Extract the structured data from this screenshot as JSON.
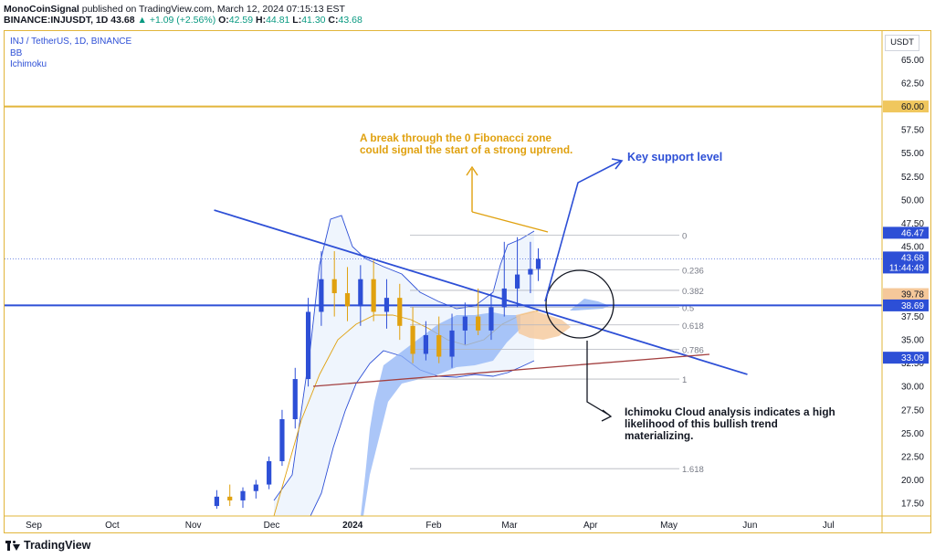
{
  "header": {
    "author": "MonoCoinSignal",
    "published": "published on TradingView.com, March 12, 2024 07:15:13 EST",
    "symbol": "BINANCE:INJUSDT, 1D",
    "last": "43.68",
    "change_arrow": "▲",
    "change": "+1.09 (+2.56%)",
    "o_label": "O:",
    "o": "42.59",
    "h_label": "H:",
    "h": "44.81",
    "l_label": "L:",
    "l": "41.30",
    "c_label": "C:",
    "c": "43.68"
  },
  "legend": {
    "title": "INJ / TetherUS, 1D, BINANCE",
    "indicator1": "BB",
    "indicator2": "Ichimoku"
  },
  "price_axis": {
    "unit": "USDT",
    "ticks": [
      "65.00",
      "62.50",
      "60.00",
      "57.50",
      "55.00",
      "52.50",
      "50.00",
      "47.50",
      "45.00",
      "42.50",
      "40.00",
      "37.50",
      "35.00",
      "32.50",
      "30.00",
      "27.50",
      "25.00",
      "22.50",
      "20.00",
      "17.50"
    ]
  },
  "time_axis": {
    "ticks": [
      "Sep",
      "Oct",
      "Nov",
      "Dec",
      "2024",
      "Feb",
      "Mar",
      "Apr",
      "May",
      "Jun",
      "Jul"
    ]
  },
  "price_labels": {
    "level_60": "60.00",
    "bb_upper": "46.47",
    "last_price": "43.68",
    "countdown": "11:44:49",
    "ichimoku": "39.78",
    "support": "38.69",
    "bb_lower": "33.09"
  },
  "fibonacci": {
    "levels": [
      "0",
      "0.236",
      "0.382",
      "0.5",
      "0.618",
      "0.786",
      "1",
      "1.618"
    ]
  },
  "annotations": {
    "orange_line1": "A break through the 0 Fibonacci zone",
    "orange_line2": "could signal the start of a strong uptrend.",
    "support_label": "Key support level",
    "cloud_line1": "Ichimoku Cloud analysis indicates a high",
    "cloud_line2": "likelihood of this bullish trend",
    "cloud_line3": "materializing."
  },
  "branding": {
    "logo_text": "TradingView"
  },
  "colors": {
    "up": "#089981",
    "orange": "#e0a10f",
    "blue": "#2d4fd6",
    "gold_line": "#e2b53a",
    "cloud_blue": "#8fb3f5",
    "cloud_orange": "#f5c89a"
  },
  "chart_data": {
    "type": "line",
    "title": "",
    "xlabel": "",
    "ylabel": "",
    "x_range": [
      "2023-09-01",
      "2024-07-31"
    ],
    "ylim": [
      16.5,
      67
    ],
    "horizontal_levels": [
      {
        "value": 60.0,
        "style": "gold"
      },
      {
        "value": 38.69,
        "style": "key-support"
      }
    ],
    "fibonacci_levels": [
      {
        "level": "0",
        "price": 46.2
      },
      {
        "level": "0.236",
        "price": 42.5
      },
      {
        "level": "0.382",
        "price": 40.3
      },
      {
        "level": "0.5",
        "price": 38.5
      },
      {
        "level": "0.618",
        "price": 36.6
      },
      {
        "level": "0.786",
        "price": 34.0
      },
      {
        "level": "1",
        "price": 30.8
      },
      {
        "level": "1.618",
        "price": 21.2
      }
    ],
    "trendlines": [
      {
        "name": "",
        "from": [
          "2023-11-09",
          48.9
        ],
        "to": [
          "2024-05-31",
          31.3
        ]
      },
      {
        "name": "",
        "from": [
          "2023-12-14",
          30.6
        ],
        "to": [
          "2024-05-19",
          33.8
        ]
      }
    ],
    "series": [
      {
        "type": "candlestick",
        "x": [
          "2023-11-10",
          "2023-11-15",
          "2023-11-20",
          "2023-11-25",
          "2023-11-30",
          "2023-12-05",
          "2023-12-10",
          "2023-12-15",
          "2023-12-20",
          "2023-12-25",
          "2023-12-30",
          "2024-01-04",
          "2024-01-09",
          "2024-01-14",
          "2024-01-19",
          "2024-01-24",
          "2024-01-29",
          "2024-02-03",
          "2024-02-08",
          "2024-02-13",
          "2024-02-18",
          "2024-02-23",
          "2024-02-28",
          "2024-03-04",
          "2024-03-09",
          "2024-03-12"
        ],
        "open": [
          17.2,
          18.2,
          17.8,
          18.8,
          19.5,
          22.0,
          26.5,
          30.8,
          38.0,
          41.5,
          40.0,
          38.6,
          41.5,
          38.0,
          39.5,
          36.5,
          33.5,
          35.5,
          33.2,
          36.0,
          37.5,
          36.0,
          38.5,
          40.5,
          42.0,
          42.59
        ],
        "high": [
          18.9,
          19.5,
          19.2,
          20.0,
          22.5,
          27.5,
          32.0,
          39.5,
          44.5,
          44.5,
          42.8,
          43.0,
          43.5,
          41.5,
          41.0,
          38.5,
          37.0,
          37.5,
          37.8,
          39.0,
          40.5,
          40.0,
          45.5,
          46.0,
          45.5,
          44.81
        ],
        "low": [
          16.9,
          17.2,
          17.0,
          18.0,
          19.0,
          21.5,
          25.5,
          30.0,
          36.5,
          37.5,
          37.0,
          36.5,
          37.0,
          36.2,
          35.0,
          32.5,
          32.8,
          32.5,
          32.0,
          34.5,
          35.5,
          35.0,
          37.5,
          38.5,
          40.0,
          41.3
        ],
        "close": [
          18.2,
          17.8,
          18.8,
          19.5,
          22.0,
          26.5,
          30.8,
          38.0,
          41.5,
          40.0,
          38.6,
          41.5,
          38.0,
          39.5,
          36.5,
          33.5,
          35.5,
          33.2,
          36.0,
          37.5,
          36.0,
          38.5,
          40.5,
          42.0,
          42.59,
          43.68
        ]
      }
    ]
  }
}
